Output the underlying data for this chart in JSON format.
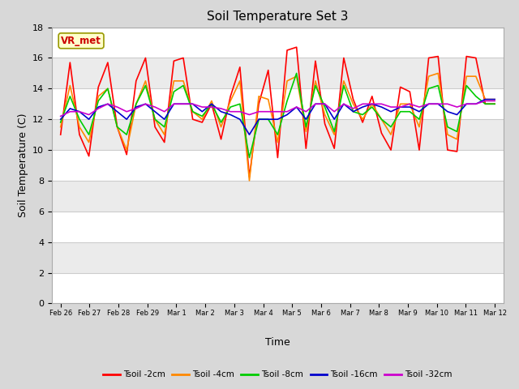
{
  "title": "Soil Temperature Set 3",
  "xlabel": "Time",
  "ylabel": "Soil Temperature (C)",
  "ylim": [
    0,
    18
  ],
  "yticks": [
    0,
    2,
    4,
    6,
    8,
    10,
    12,
    14,
    16,
    18
  ],
  "fig_bg": "#d8d8d8",
  "plot_bg": "#ffffff",
  "band_color": "#d8d8d8",
  "annotation_text": "VR_met",
  "annotation_color": "#cc0000",
  "annotation_bg": "#ffffcc",
  "annotation_border": "#999900",
  "series_colors": [
    "#ff0000",
    "#ff8800",
    "#00cc00",
    "#0000cc",
    "#cc00cc"
  ],
  "series_labels": [
    "Tsoil -2cm",
    "Tsoil -4cm",
    "Tsoil -8cm",
    "Tsoil -16cm",
    "Tsoil -32cm"
  ],
  "tick_labels": [
    "Feb 26",
    "Feb 27",
    "Feb 28",
    "Feb 29",
    "Mar 1",
    "Mar 2",
    "Mar 3",
    "Mar 4",
    "Mar 5",
    "Mar 6",
    "Mar 7",
    "Mar 8",
    "Mar 9",
    "Mar 10",
    "Mar 11",
    "Mar 12"
  ],
  "tsoil_2cm": [
    11.0,
    15.7,
    11.0,
    9.6,
    14.1,
    15.7,
    11.5,
    9.7,
    14.5,
    16.0,
    11.5,
    10.5,
    15.8,
    16.0,
    12.0,
    11.8,
    13.0,
    10.7,
    13.5,
    15.4,
    8.25,
    13.0,
    15.2,
    9.5,
    16.5,
    16.7,
    10.1,
    15.8,
    11.7,
    10.1,
    16.0,
    13.3,
    11.8,
    13.5,
    11.1,
    10.0,
    14.1,
    13.8,
    10.0,
    16.0,
    16.1,
    10.0,
    9.9,
    16.1,
    16.0,
    13.0,
    13.0
  ],
  "tsoil_4cm": [
    11.5,
    14.2,
    11.5,
    10.5,
    13.5,
    14.0,
    11.5,
    10.0,
    13.0,
    14.5,
    12.0,
    11.0,
    14.5,
    14.5,
    12.5,
    12.0,
    13.2,
    11.5,
    13.2,
    14.5,
    8.0,
    13.5,
    13.3,
    10.5,
    14.5,
    14.8,
    11.2,
    14.5,
    12.3,
    11.0,
    14.5,
    13.0,
    12.0,
    13.0,
    12.0,
    11.0,
    13.0,
    13.0,
    11.5,
    14.8,
    15.0,
    11.0,
    10.7,
    14.8,
    14.8,
    13.3,
    13.3
  ],
  "tsoil_8cm": [
    11.8,
    13.5,
    12.0,
    11.0,
    13.2,
    14.0,
    11.5,
    11.0,
    13.0,
    14.2,
    12.0,
    11.5,
    13.8,
    14.2,
    12.5,
    12.2,
    13.0,
    11.8,
    12.8,
    13.0,
    9.5,
    12.0,
    12.0,
    11.0,
    13.2,
    15.0,
    11.5,
    14.2,
    12.8,
    11.2,
    14.2,
    12.5,
    12.3,
    12.8,
    12.0,
    11.5,
    12.5,
    12.5,
    12.0,
    14.0,
    14.2,
    11.5,
    11.2,
    14.2,
    13.5,
    13.0,
    13.0
  ],
  "tsoil_16cm": [
    12.0,
    12.7,
    12.5,
    12.0,
    12.8,
    13.0,
    12.5,
    12.0,
    12.8,
    13.0,
    12.5,
    12.0,
    13.0,
    13.0,
    13.0,
    12.5,
    13.0,
    12.5,
    12.3,
    12.0,
    11.0,
    12.0,
    12.0,
    12.0,
    12.3,
    12.8,
    12.0,
    13.0,
    13.0,
    12.0,
    13.0,
    12.5,
    12.8,
    13.0,
    12.8,
    12.5,
    12.8,
    12.8,
    12.5,
    13.0,
    13.0,
    12.5,
    12.3,
    13.0,
    13.0,
    13.3,
    13.3
  ],
  "tsoil_32cm": [
    12.2,
    12.5,
    12.5,
    12.3,
    12.7,
    13.0,
    12.8,
    12.5,
    12.7,
    13.0,
    12.8,
    12.5,
    13.0,
    13.0,
    13.0,
    12.8,
    12.8,
    12.7,
    12.5,
    12.5,
    12.3,
    12.5,
    12.5,
    12.5,
    12.5,
    12.8,
    12.5,
    13.0,
    13.0,
    12.5,
    13.0,
    12.7,
    13.0,
    13.0,
    13.0,
    12.8,
    12.8,
    13.0,
    12.8,
    13.0,
    13.0,
    13.0,
    12.8,
    13.0,
    13.0,
    13.2,
    13.2
  ]
}
